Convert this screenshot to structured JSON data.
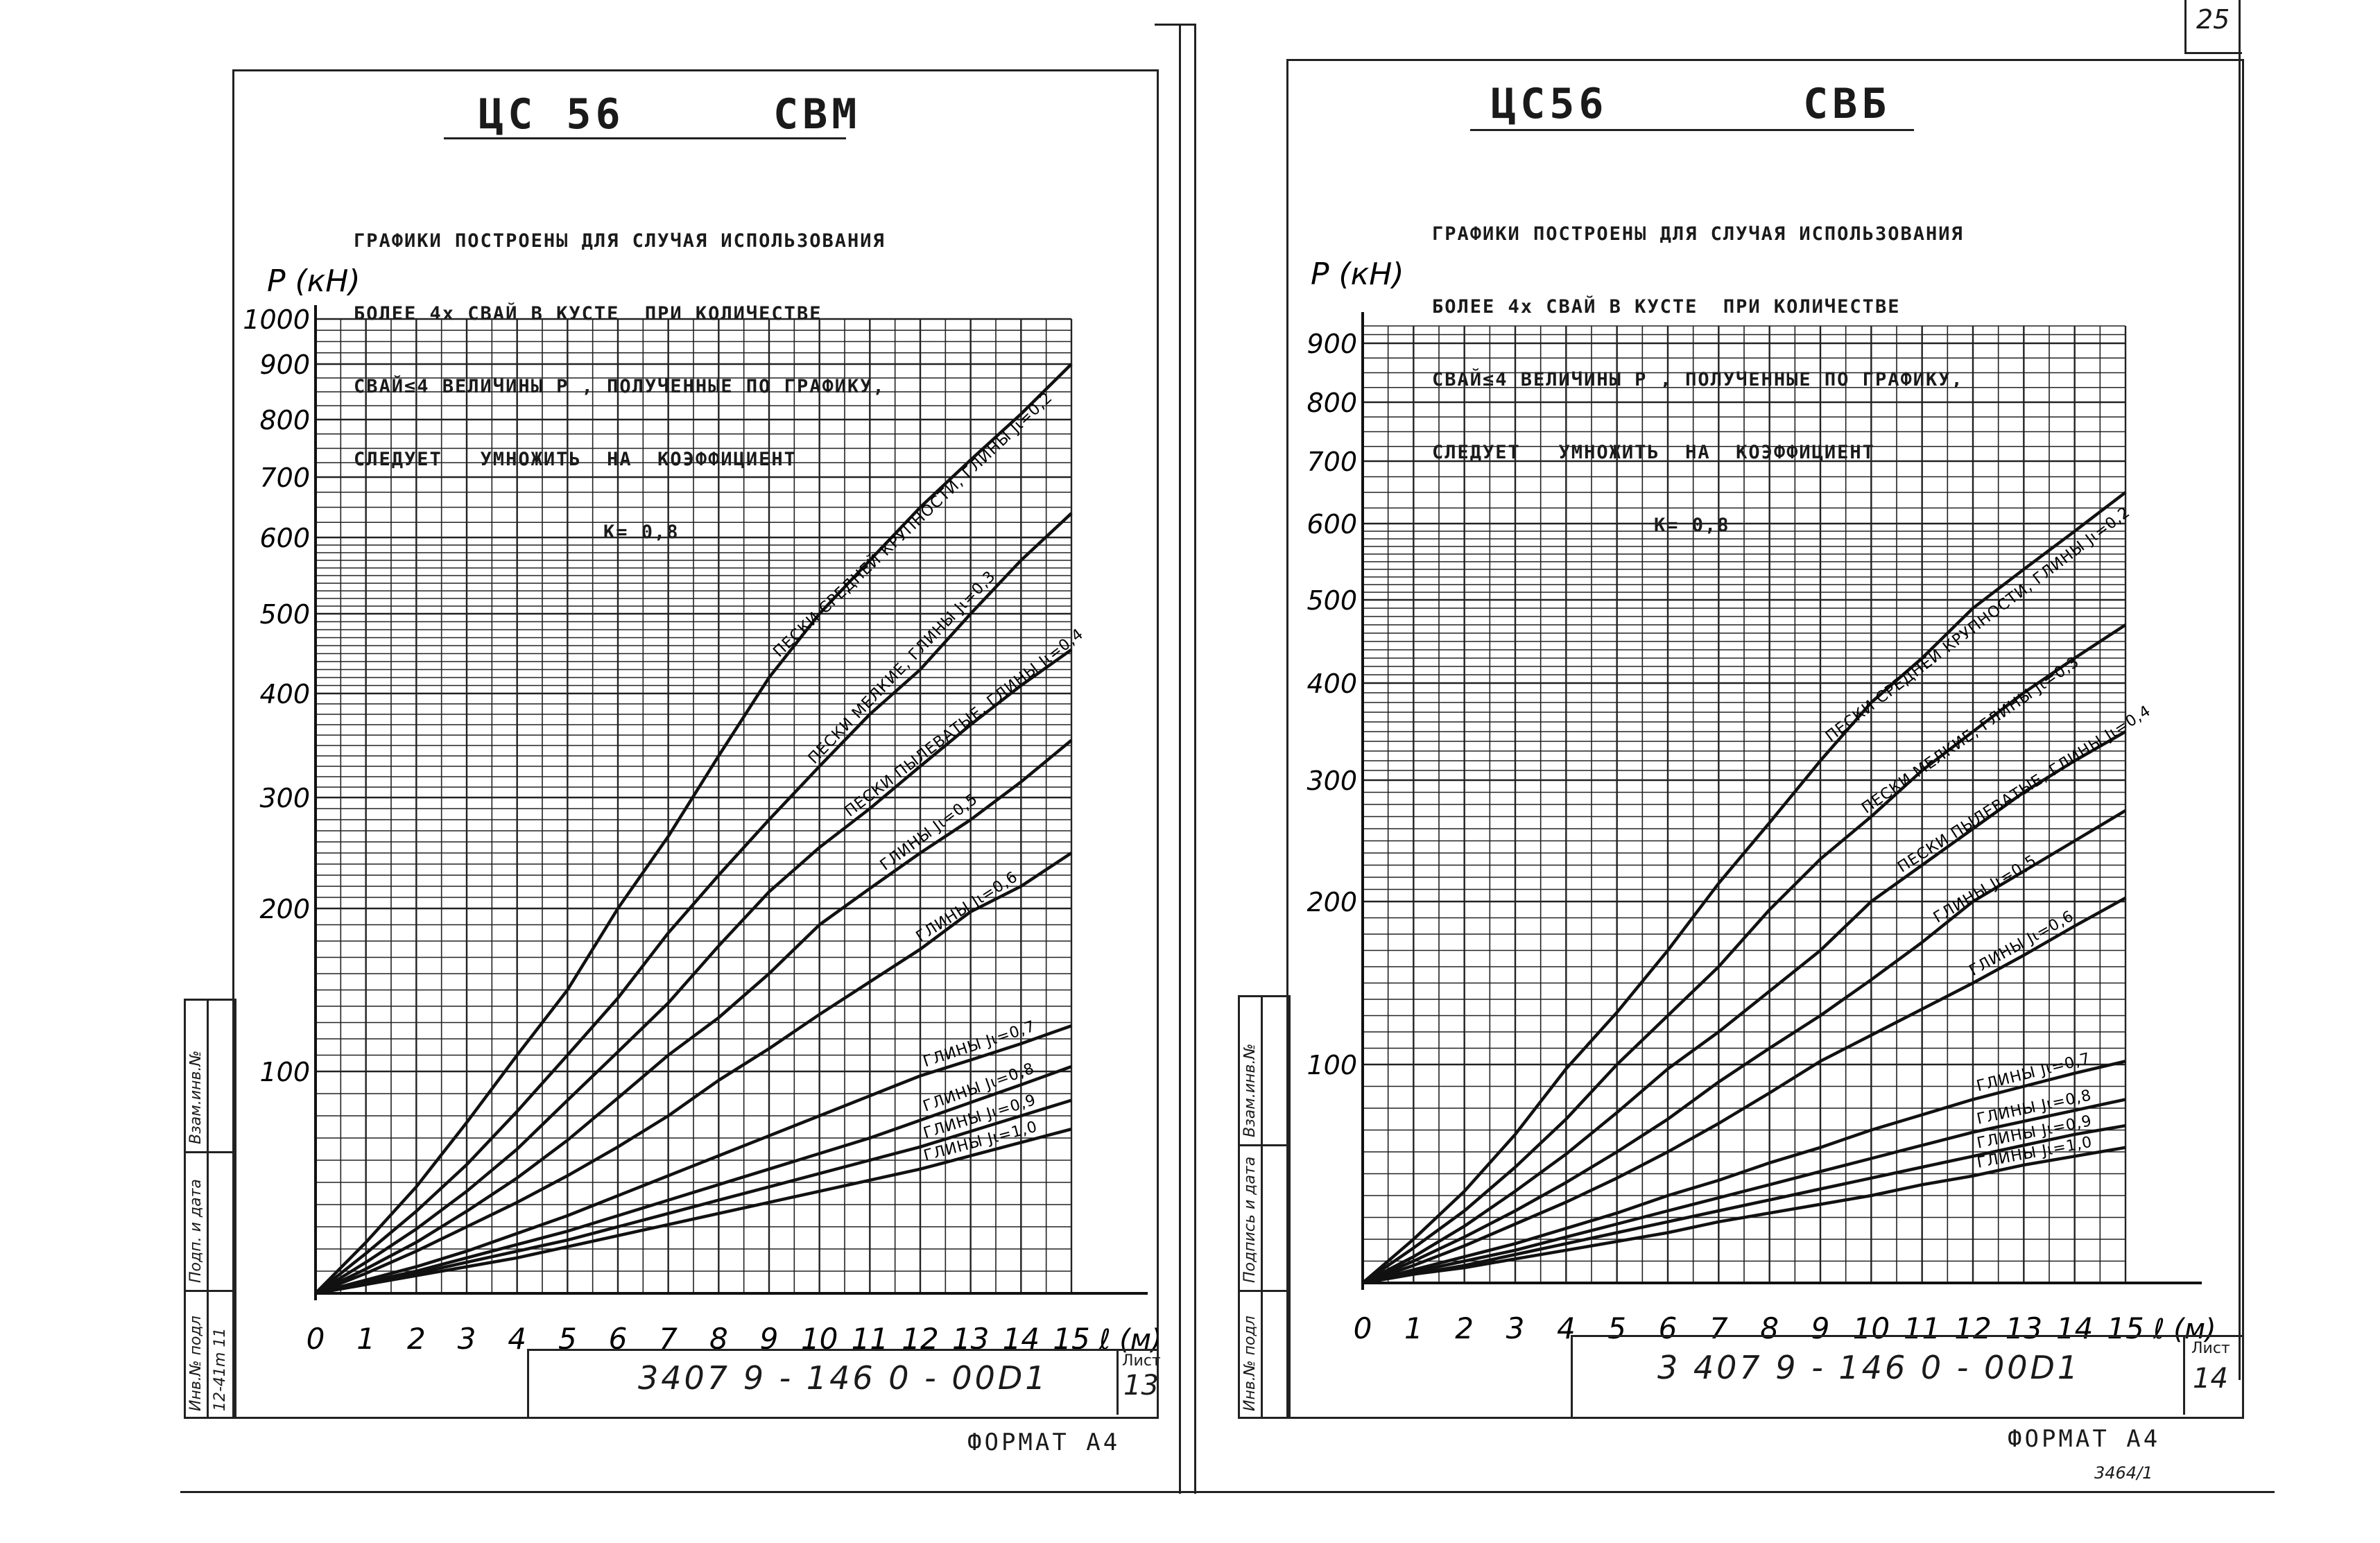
{
  "page_number": "25",
  "bottom_note": "3464/1",
  "sheets": [
    {
      "title_left": "ЦС 56",
      "title_right": "СВМ",
      "note_lines": [
        "ГРАФИКИ ПОСТРОЕНЫ ДЛЯ СЛУЧАЯ ИСПОЛЬЗОВАНИЯ",
        "БОЛЕЕ 4х СВАЙ В КУСТЕ  ПРИ КОЛИЧЕСТВЕ",
        "СВАЙ≤4 ВЕЛИЧИНЫ Р , ПОЛУЧЕННЫЕ ПО ГРАФИКУ,",
        "СЛЕДУЕТ   УМНОЖИТЬ  НА  КОЭФФИЦИЕНТ",
        "К= 0,8"
      ],
      "stamp_code": "3407 9 - 146 0 - 00D1",
      "sheet_label": "Лист",
      "sheet_number": "13",
      "format_label": "ФОРМАТ А4",
      "sidebar": [
        "Инв.№ подл",
        "Подп. и дата",
        "Взам.инв.№"
      ],
      "sidebar_value": "12-41m 11"
    },
    {
      "title_left": "ЦС56",
      "title_right": "СВБ",
      "note_lines": [
        "ГРАФИКИ ПОСТРОЕНЫ ДЛЯ СЛУЧАЯ ИСПОЛЬЗОВАНИЯ",
        "БОЛЕЕ 4х СВАЙ В КУСТЕ  ПРИ КОЛИЧЕСТВЕ",
        "СВАЙ≤4 ВЕЛИЧИНЫ Р , ПОЛУЧЕННЫЕ ПО ГРАФИКУ,",
        "СЛЕДУЕТ   УМНОЖИТЬ  НА  КОЭФФИЦИЕНТ",
        "К= 0,8"
      ],
      "stamp_code": "3 407 9 - 146 0 - 00D1",
      "sheet_label": "Лист",
      "sheet_number": "14",
      "format_label": "ФОРМАТ А4",
      "sidebar": [
        "Инв.№ подл",
        "Подпись и дата",
        "Взам.инв.№"
      ],
      "sidebar_value": ""
    }
  ],
  "chart_data": [
    {
      "type": "line",
      "title": "ЦС 56  СВМ",
      "ylabel": "Р (кН)",
      "xlabel": "ℓ (м)",
      "x_ticks": [
        0,
        1,
        2,
        3,
        4,
        5,
        6,
        7,
        8,
        9,
        10,
        11,
        12,
        13,
        14,
        15
      ],
      "y_ticks": [
        100,
        200,
        300,
        400,
        500,
        600,
        700,
        800,
        900,
        1000
      ],
      "xlim": [
        0,
        15
      ],
      "ylim": [
        0,
        1000
      ],
      "y_scale": "nonlinear",
      "grid": true,
      "series": [
        {
          "name": "ПЕСКИ СРЕДНЕЙ КРУПНОСТИ, ГЛИНЫ Jι=0,2",
          "x": [
            0,
            1,
            2,
            3,
            4,
            5,
            6,
            7,
            8,
            9,
            10,
            11,
            12,
            13,
            14,
            15
          ],
          "y": [
            0,
            23,
            48,
            77,
            110,
            150,
            200,
            265,
            340,
            420,
            500,
            570,
            650,
            730,
            810,
            900
          ]
        },
        {
          "name": "ПЕСКИ МЕЛКИЕ, ГЛИНЫ Jι=0,3",
          "x": [
            0,
            1,
            2,
            3,
            4,
            5,
            6,
            7,
            8,
            9,
            10,
            11,
            12,
            13,
            14,
            15
          ],
          "y": [
            0,
            18,
            37,
            58,
            82,
            110,
            145,
            185,
            230,
            280,
            330,
            380,
            430,
            500,
            570,
            640
          ]
        },
        {
          "name": "ПЕСКИ ПЫЛЕВАТЫЕ, ГЛИНЫ Jι=0,4",
          "x": [
            0,
            1,
            2,
            3,
            4,
            5,
            6,
            7,
            8,
            9,
            10,
            11,
            12,
            13,
            14,
            15
          ],
          "y": [
            0,
            14,
            29,
            46,
            65,
            87,
            112,
            142,
            177,
            215,
            255,
            290,
            330,
            370,
            410,
            455
          ]
        },
        {
          "name": "ГЛИНЫ Jι=0,5",
          "x": [
            0,
            1,
            2,
            3,
            4,
            5,
            6,
            7,
            8,
            9,
            10,
            11,
            12,
            13,
            14,
            15
          ],
          "y": [
            0,
            11,
            23,
            37,
            52,
            69,
            88,
            110,
            133,
            160,
            190,
            218,
            250,
            280,
            315,
            355
          ]
        },
        {
          "name": "ГЛИНЫ Jι=0,6",
          "x": [
            0,
            1,
            2,
            3,
            4,
            5,
            6,
            7,
            8,
            9,
            10,
            11,
            12,
            13,
            14,
            15
          ],
          "y": [
            0,
            9,
            19,
            30,
            41,
            53,
            66,
            80,
            96,
            114,
            135,
            155,
            175,
            198,
            220,
            250
          ]
        },
        {
          "name": "ГЛИНЫ Jι=0,7",
          "x": [
            0,
            1,
            2,
            3,
            4,
            5,
            6,
            7,
            8,
            9,
            10,
            11,
            12,
            13,
            14,
            15
          ],
          "y": [
            0,
            6,
            12,
            19,
            27,
            35,
            44,
            53,
            62,
            71,
            80,
            89,
            98,
            107,
            117,
            128
          ]
        },
        {
          "name": "ГЛИНЫ Jι=0,8",
          "x": [
            0,
            1,
            2,
            3,
            4,
            5,
            6,
            7,
            8,
            9,
            10,
            11,
            12,
            13,
            14,
            15
          ],
          "y": [
            0,
            5,
            10,
            16,
            22,
            28,
            35,
            42,
            49,
            56,
            63,
            70,
            78,
            86,
            94,
            103
          ]
        },
        {
          "name": "ГЛИНЫ Jι=0,9",
          "x": [
            0,
            1,
            2,
            3,
            4,
            5,
            6,
            7,
            8,
            9,
            10,
            11,
            12,
            13,
            14,
            15
          ],
          "y": [
            0,
            4,
            9,
            14,
            19,
            24,
            30,
            36,
            42,
            48,
            54,
            60,
            66,
            73,
            80,
            87
          ]
        },
        {
          "name": "ГЛИНЫ Jι=1,0",
          "x": [
            0,
            1,
            2,
            3,
            4,
            5,
            6,
            7,
            8,
            9,
            10,
            11,
            12,
            13,
            14,
            15
          ],
          "y": [
            0,
            4,
            8,
            12,
            16,
            21,
            26,
            31,
            36,
            41,
            46,
            51,
            56,
            62,
            68,
            74
          ]
        }
      ]
    },
    {
      "type": "line",
      "title": "ЦС56  СВБ",
      "ylabel": "Р (кН)",
      "xlabel": "ℓ (м)",
      "x_ticks": [
        0,
        1,
        2,
        3,
        4,
        5,
        6,
        7,
        8,
        9,
        10,
        11,
        12,
        13,
        14,
        15
      ],
      "y_ticks": [
        100,
        200,
        300,
        400,
        500,
        600,
        700,
        800,
        900
      ],
      "xlim": [
        0,
        15
      ],
      "ylim": [
        0,
        950
      ],
      "y_scale": "nonlinear",
      "grid": true,
      "series": [
        {
          "name": "ПЕСКИ СРЕДНЕЙ КРУПНОСТИ, ГЛИНЫ Jι=0,2",
          "x": [
            0,
            1,
            2,
            3,
            4,
            5,
            6,
            7,
            8,
            9,
            10,
            11,
            12,
            13,
            14,
            15
          ],
          "y": [
            0,
            20,
            42,
            68,
            98,
            132,
            170,
            215,
            265,
            320,
            380,
            430,
            490,
            540,
            590,
            650
          ]
        },
        {
          "name": "ПЕСКИ МЕЛКИЕ, ГЛИНЫ Jι=0,3",
          "x": [
            0,
            1,
            2,
            3,
            4,
            5,
            6,
            7,
            8,
            9,
            10,
            11,
            12,
            13,
            14,
            15
          ],
          "y": [
            0,
            16,
            33,
            53,
            75,
            100,
            130,
            160,
            195,
            235,
            270,
            310,
            350,
            390,
            430,
            470
          ]
        },
        {
          "name": "ПЕСКИ ПЫЛЕВАТЫЕ, ГЛИНЫ Jι=0,4",
          "x": [
            0,
            1,
            2,
            3,
            4,
            5,
            6,
            7,
            8,
            9,
            10,
            11,
            12,
            13,
            14,
            15
          ],
          "y": [
            0,
            12,
            26,
            42,
            59,
            78,
            98,
            120,
            145,
            170,
            200,
            230,
            260,
            290,
            320,
            350
          ]
        },
        {
          "name": "ГЛИНЫ Jι=0,5",
          "x": [
            0,
            1,
            2,
            3,
            4,
            5,
            6,
            7,
            8,
            9,
            10,
            11,
            12,
            13,
            14,
            15
          ],
          "y": [
            0,
            10,
            21,
            33,
            46,
            60,
            75,
            92,
            110,
            130,
            152,
            175,
            200,
            225,
            250,
            275
          ]
        },
        {
          "name": "ГЛИНЫ Jι=0,6",
          "x": [
            0,
            1,
            2,
            3,
            4,
            5,
            6,
            7,
            8,
            9,
            10,
            11,
            12,
            13,
            14,
            15
          ],
          "y": [
            0,
            8,
            17,
            27,
            37,
            48,
            60,
            73,
            87,
            102,
            118,
            134,
            150,
            167,
            185,
            203
          ]
        },
        {
          "name": "ГЛИНЫ Jι=0,7",
          "x": [
            0,
            1,
            2,
            3,
            4,
            5,
            6,
            7,
            8,
            9,
            10,
            11,
            12,
            13,
            14,
            15
          ],
          "y": [
            0,
            6,
            12,
            18,
            25,
            32,
            40,
            47,
            55,
            62,
            70,
            77,
            84,
            90,
            96,
            102
          ]
        },
        {
          "name": "ГЛИНЫ Jι=0,8",
          "x": [
            0,
            1,
            2,
            3,
            4,
            5,
            6,
            7,
            8,
            9,
            10,
            11,
            12,
            13,
            14,
            15
          ],
          "y": [
            0,
            5,
            10,
            15,
            21,
            27,
            33,
            39,
            45,
            51,
            57,
            63,
            69,
            74,
            79,
            84
          ]
        },
        {
          "name": "ГЛИНЫ Jι=0,9",
          "x": [
            0,
            1,
            2,
            3,
            4,
            5,
            6,
            7,
            8,
            9,
            10,
            11,
            12,
            13,
            14,
            15
          ],
          "y": [
            0,
            4,
            8,
            13,
            18,
            23,
            28,
            33,
            38,
            43,
            48,
            53,
            58,
            63,
            68,
            72
          ]
        },
        {
          "name": "ГЛИНЫ Jι=1,0",
          "x": [
            0,
            1,
            2,
            3,
            4,
            5,
            6,
            7,
            8,
            9,
            10,
            11,
            12,
            13,
            14,
            15
          ],
          "y": [
            0,
            4,
            7,
            11,
            15,
            19,
            23,
            28,
            32,
            36,
            40,
            45,
            49,
            54,
            58,
            62
          ]
        }
      ]
    }
  ]
}
